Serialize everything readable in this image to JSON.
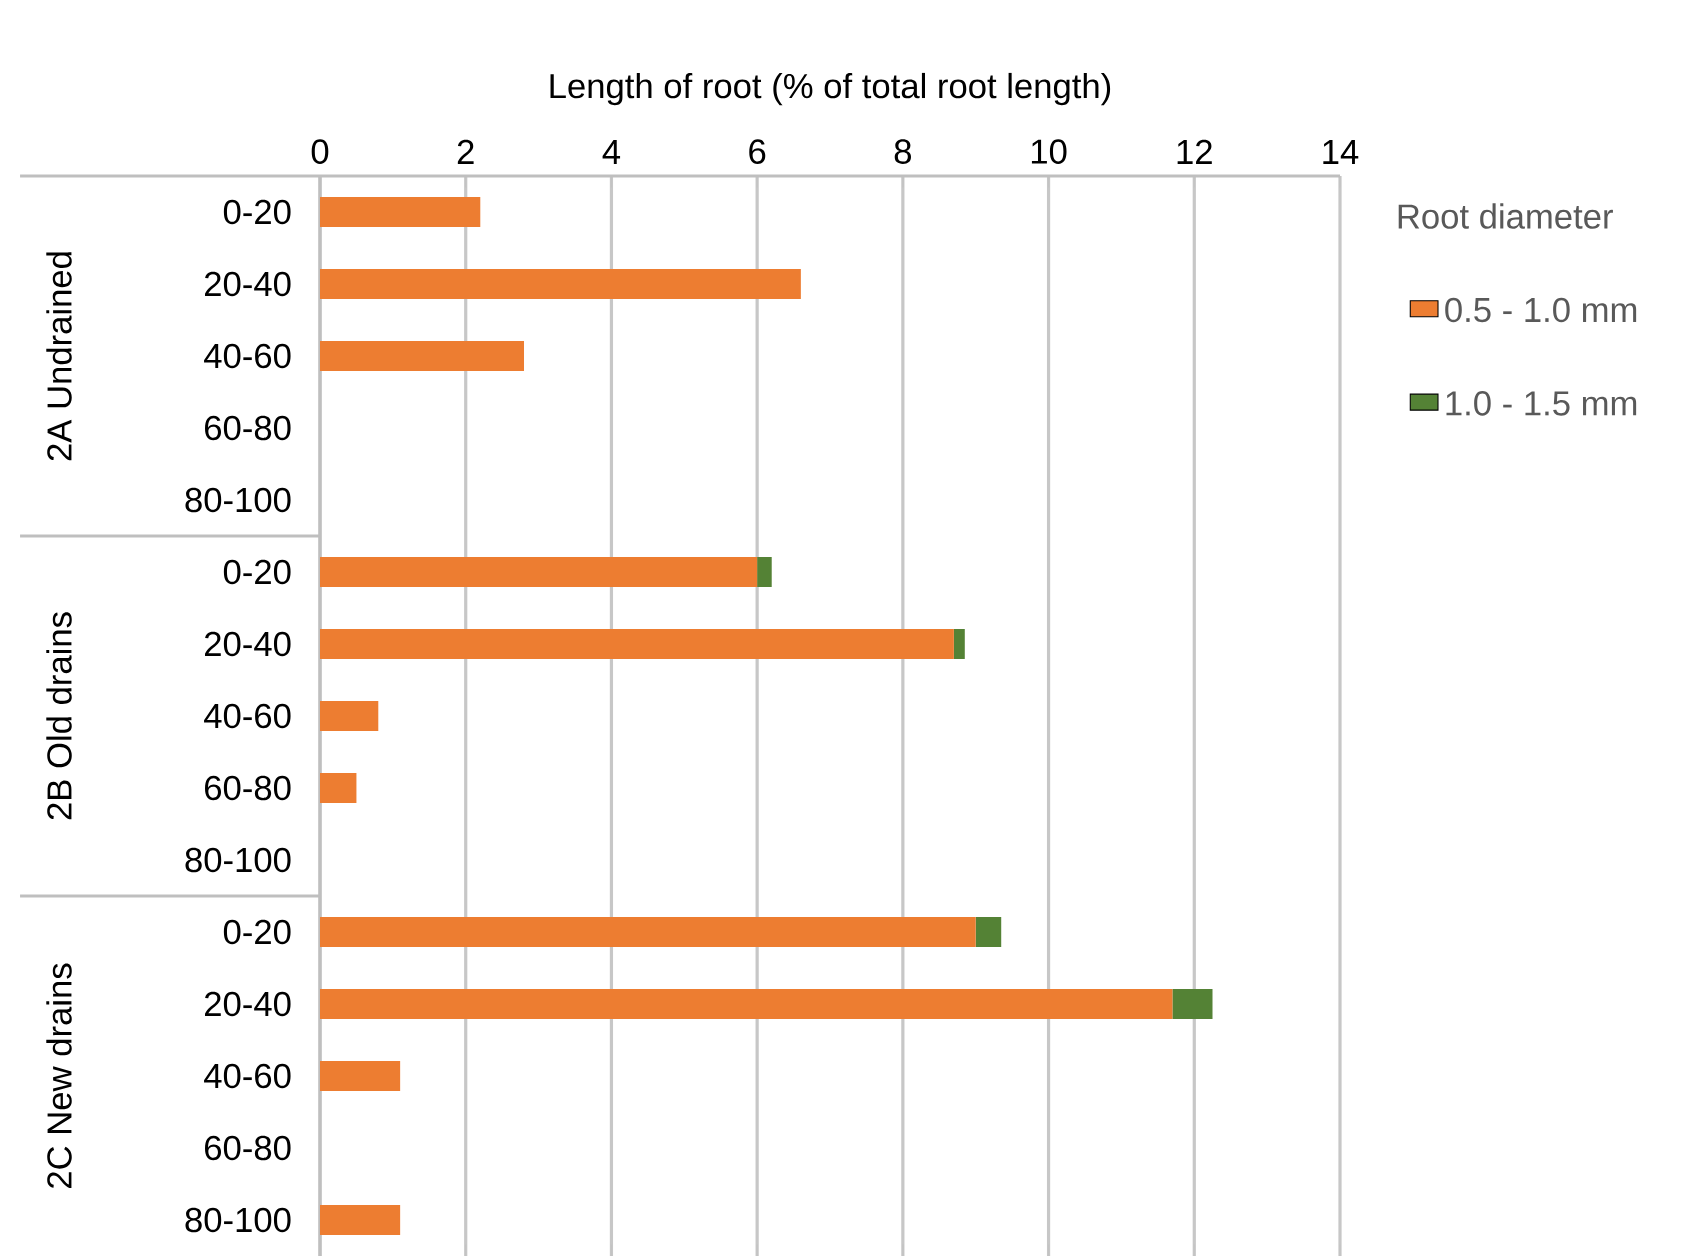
{
  "chart_data": {
    "type": "bar",
    "orientation": "horizontal",
    "stacked": true,
    "xlabel": "Length of root (% of total root length)",
    "categories": [
      "0-20",
      "20-40",
      "40-60",
      "60-80",
      "80-100",
      "0-20",
      "20-40",
      "40-60",
      "60-80",
      "80-100",
      "0-20",
      "20-40",
      "40-60",
      "60-80",
      "80-100"
    ],
    "series": [
      {
        "name": "0.5 - 1.0 mm",
        "color": "#ed7d31",
        "values": [
          2.2,
          6.6,
          2.8,
          0,
          0,
          6.0,
          8.7,
          0.8,
          0.5,
          0,
          9.0,
          11.7,
          1.1,
          0,
          1.1
        ]
      },
      {
        "name": "1.0 - 1.5 mm",
        "color": "#548235",
        "values": [
          0,
          0,
          0,
          0,
          0,
          0.2,
          0.15,
          0,
          0,
          0,
          0.35,
          0.55,
          0,
          0,
          0
        ]
      }
    ],
    "xlim": [
      0,
      14
    ],
    "xticks": [
      0,
      2,
      4,
      6,
      8,
      10,
      12,
      14
    ],
    "grid": "x",
    "legend": "right",
    "legend_title": "Root diameter",
    "annotations": [
      "2A Undrained",
      "2B Old drains",
      "2C New drains"
    ]
  }
}
